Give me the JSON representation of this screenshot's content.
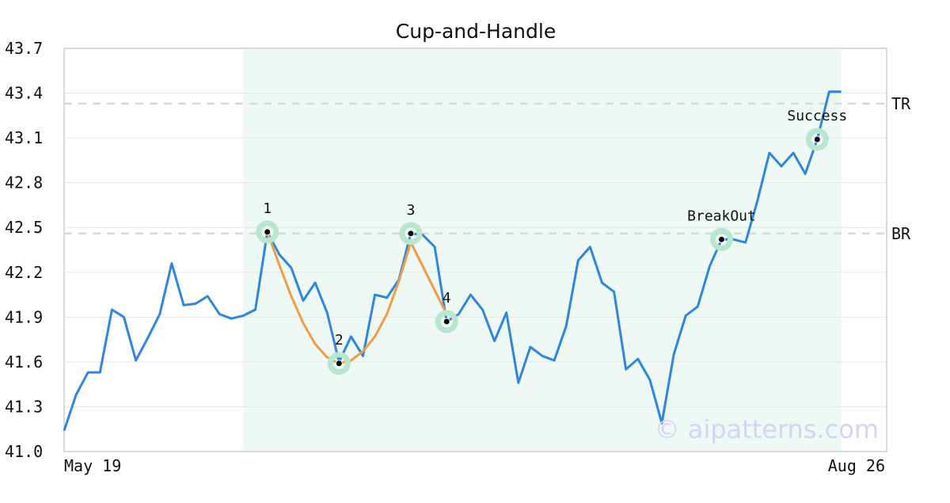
{
  "chart_data": {
    "type": "line",
    "title": "Cup-and-Handle",
    "xlabel": "",
    "ylabel": "",
    "x_tick_labels": [
      "May 19",
      "Aug 26"
    ],
    "ylim": [
      41.0,
      43.7
    ],
    "y_ticks": [
      "41.0",
      "41.3",
      "41.6",
      "41.9",
      "42.2",
      "42.5",
      "42.8",
      "43.1",
      "43.4",
      "43.7"
    ],
    "grid": true,
    "series": [
      {
        "values": [
          41.14,
          41.38,
          41.53,
          41.53,
          41.95,
          41.9,
          41.61,
          41.76,
          41.92,
          42.26,
          41.98,
          41.99,
          42.04,
          41.92,
          41.89,
          41.91,
          41.95,
          42.47,
          42.32,
          42.23,
          42.01,
          42.13,
          41.93,
          41.6,
          41.77,
          41.64,
          42.05,
          42.03,
          42.15,
          42.46,
          42.45,
          42.37,
          41.87,
          41.92,
          42.05,
          41.95,
          41.74,
          41.93,
          41.46,
          41.7,
          41.64,
          41.61,
          41.84,
          42.28,
          42.37,
          42.13,
          42.07,
          41.55,
          41.62,
          41.48,
          41.19,
          41.65,
          41.91,
          41.97,
          42.24,
          42.42,
          42.42,
          42.4,
          42.68,
          43.0,
          42.91,
          43.0,
          42.86,
          43.09,
          43.41,
          43.41
        ],
        "color": "#2e86de"
      }
    ],
    "cup_curve": {
      "color": "#f39c45",
      "points": [
        [
          17,
          42.47
        ],
        [
          18,
          42.25
        ],
        [
          19,
          42.04
        ],
        [
          20,
          41.86
        ],
        [
          21,
          41.72
        ],
        [
          22,
          41.63
        ],
        [
          23,
          41.59
        ],
        [
          24,
          41.61
        ],
        [
          25,
          41.67
        ],
        [
          26,
          41.77
        ],
        [
          27,
          41.92
        ],
        [
          28,
          42.14
        ],
        [
          29,
          42.4
        ],
        [
          30,
          42.24
        ],
        [
          31,
          42.08
        ],
        [
          32,
          41.92
        ]
      ]
    },
    "pattern_region": {
      "x_start": 15,
      "x_end": 65,
      "color": "#eef8f4"
    },
    "levels": [
      {
        "label": "TR",
        "value": 43.33
      },
      {
        "label": "BR",
        "value": 42.46
      }
    ],
    "annotations": [
      {
        "label": "1",
        "x": 17,
        "y": 42.47,
        "label_pos": "above"
      },
      {
        "label": "2",
        "x": 23,
        "y": 41.59,
        "label_pos": "above"
      },
      {
        "label": "3",
        "x": 29,
        "y": 42.46,
        "label_pos": "above"
      },
      {
        "label": "4",
        "x": 32,
        "y": 41.87,
        "label_pos": "above"
      },
      {
        "label": "BreakOut",
        "x": 55,
        "y": 42.42,
        "label_pos": "above"
      },
      {
        "label": "Success",
        "x": 63,
        "y": 43.09,
        "label_pos": "above"
      }
    ],
    "marker_color": "#b8e6cf",
    "watermark": "© aipatterns.com",
    "watermark_color": "#d6d3f7"
  }
}
